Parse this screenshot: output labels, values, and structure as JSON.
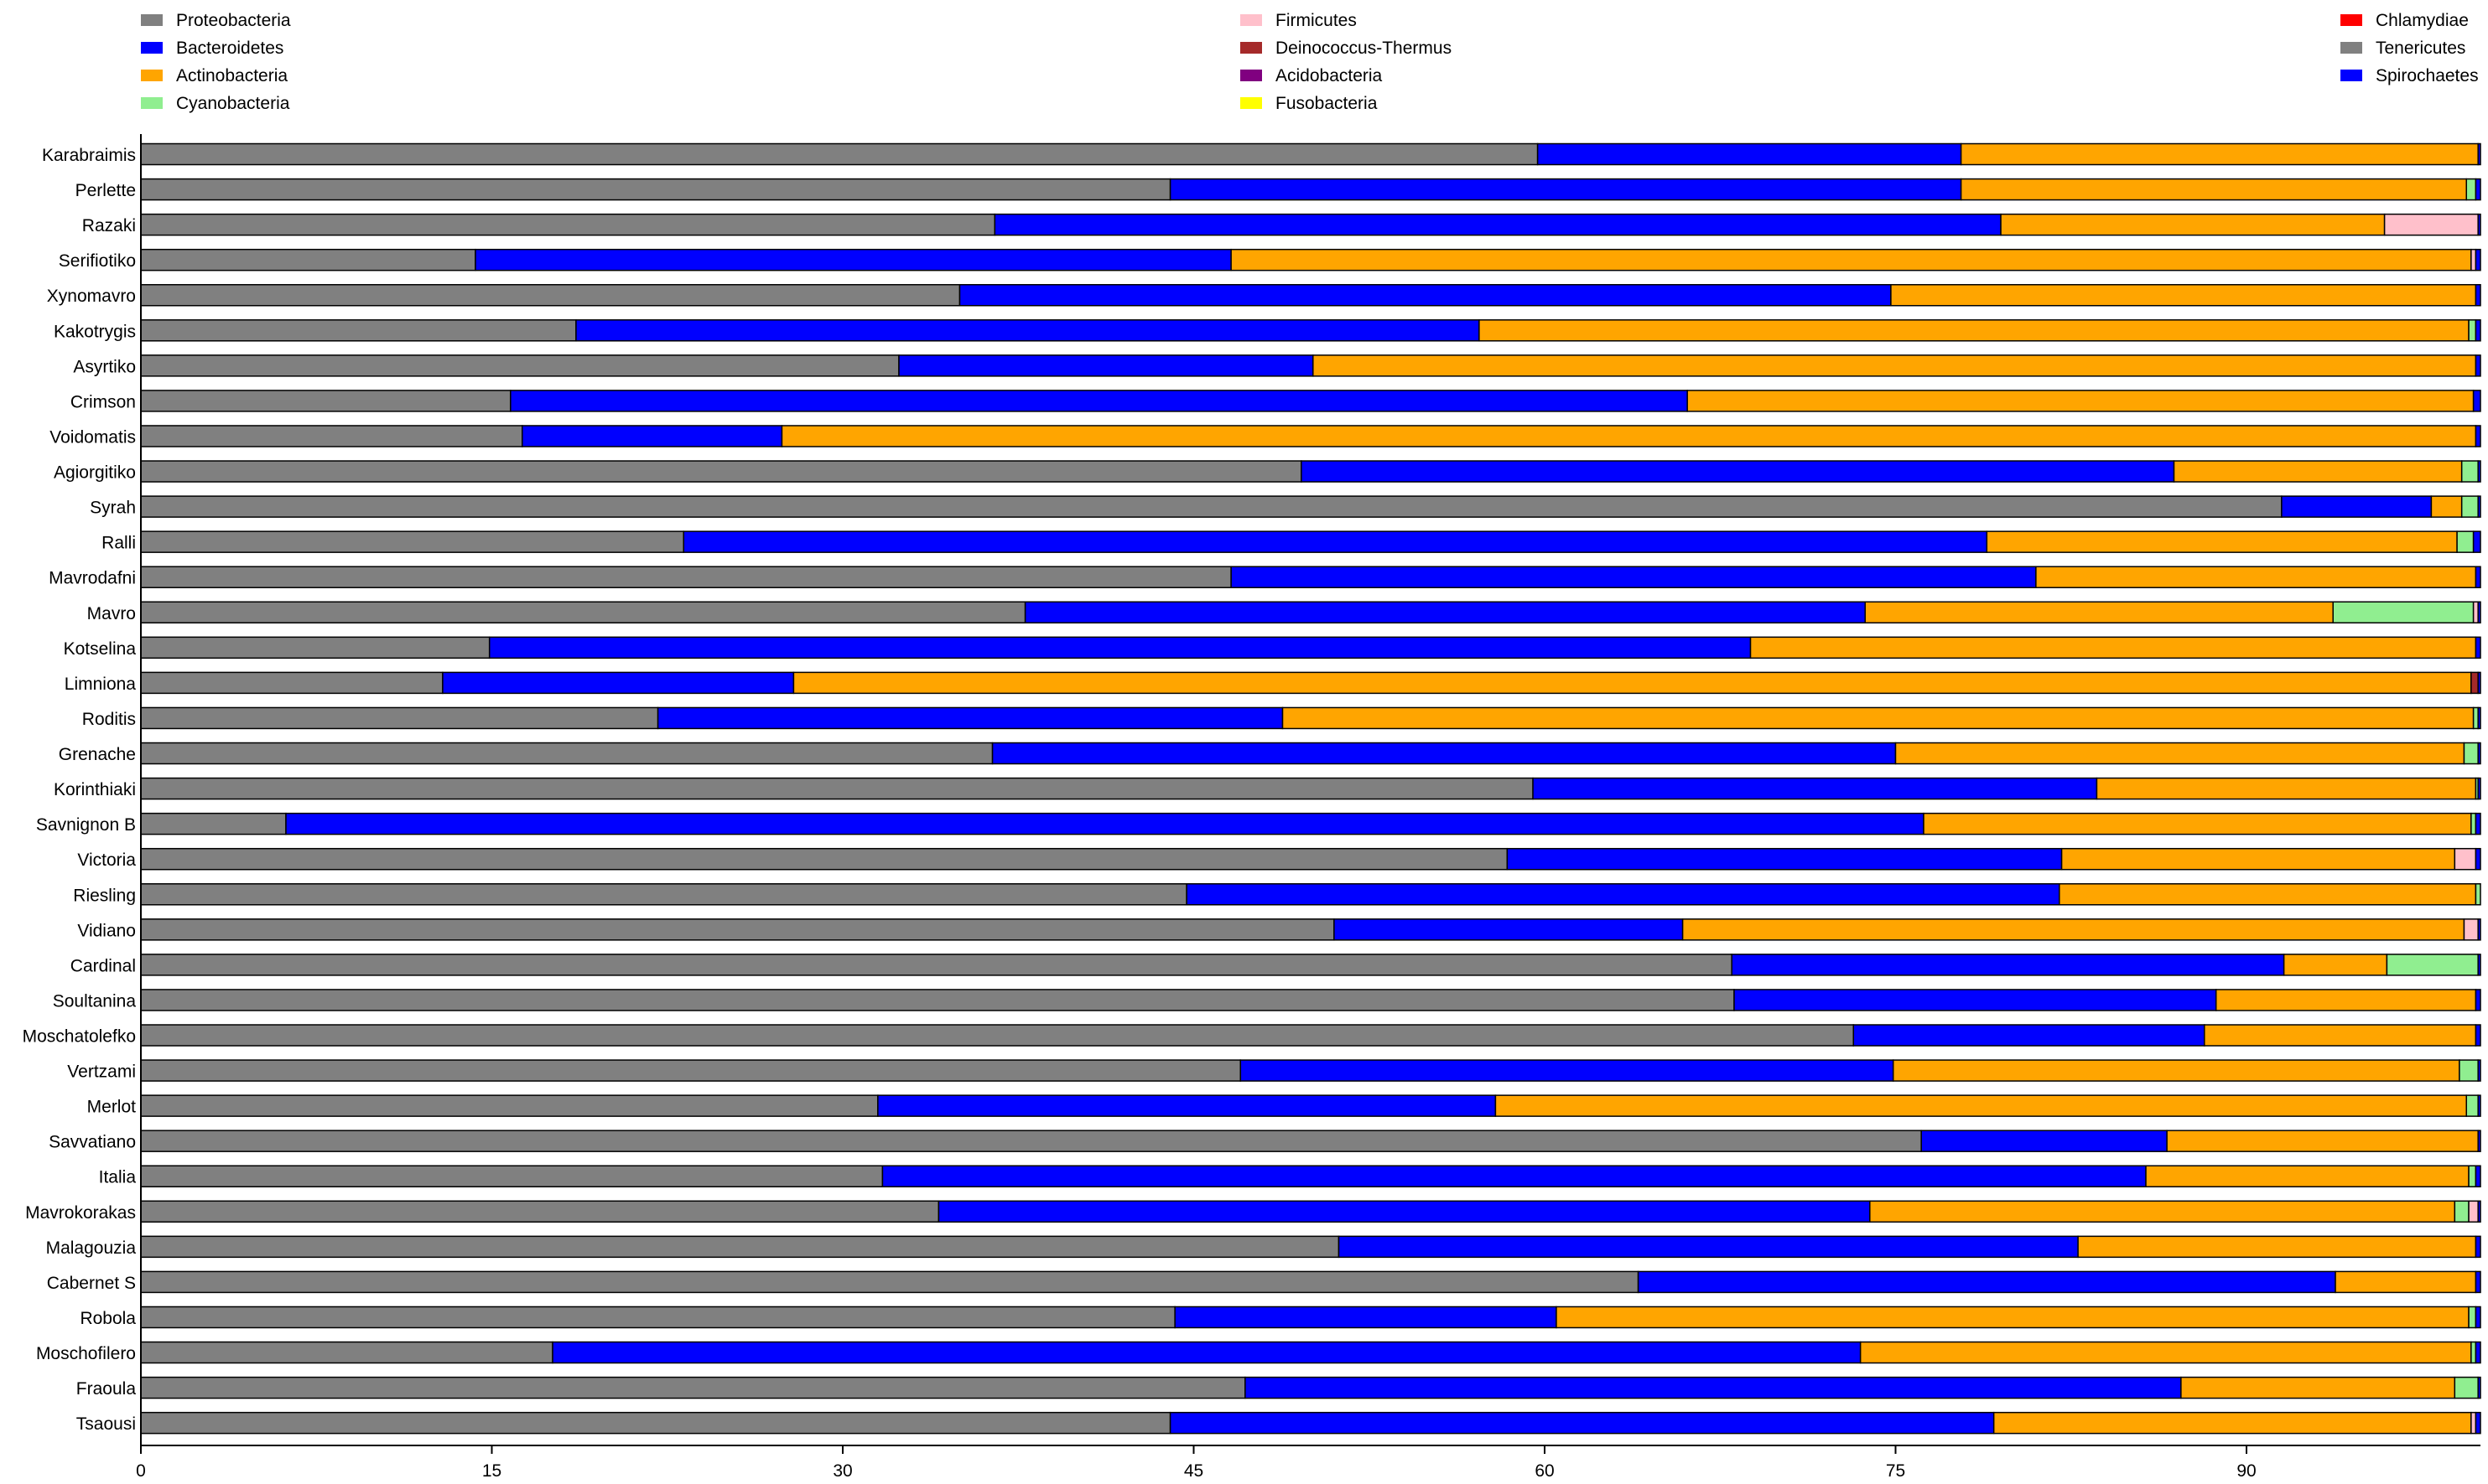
{
  "chart_data": {
    "type": "bar",
    "orientation": "horizontal",
    "stacked": true,
    "title": "",
    "xlabel": "",
    "ylabel": "",
    "xlim": [
      0,
      100
    ],
    "x_ticks": [
      0,
      15,
      30,
      45,
      60,
      75,
      90
    ],
    "legend": {
      "columns": [
        [
          "Proteobacteria",
          "Bacteroidetes",
          "Actinobacteria",
          "Cyanobacteria"
        ],
        [
          "Firmicutes",
          "Deinococcus-Thermus",
          "Acidobacteria",
          "Fusobacteria"
        ],
        [
          "Chlamydiae",
          "Tenericutes",
          "Spirochaetes"
        ]
      ],
      "placement": "top"
    },
    "series_colors": {
      "Proteobacteria": "#808080",
      "Bacteroidetes": "#0000ff",
      "Actinobacteria": "#ffa500",
      "Cyanobacteria": "#90ee90",
      "Firmicutes": "#ffc0cb",
      "Deinococcus-Thermus": "#a52a2a",
      "Acidobacteria": "#800080",
      "Fusobacteria": "#ffff00",
      "Chlamydiae": "#ff0000",
      "Tenericutes": "#808080",
      "Spirochaetes": "#0000ff"
    },
    "series_order": [
      "Proteobacteria",
      "Bacteroidetes",
      "Actinobacteria",
      "Cyanobacteria",
      "Firmicutes",
      "Deinococcus-Thermus",
      "Acidobacteria",
      "Fusobacteria",
      "Chlamydiae",
      "Tenericutes",
      "Spirochaetes"
    ],
    "categories": [
      "Karabraimis",
      "Perlette",
      "Razaki",
      "Serifiotiko",
      "Xynomavro",
      "Kakotrygis",
      "Asyrtiko",
      "Crimson",
      "Voidomatis",
      "Agiorgitiko",
      "Syrah",
      "Ralli",
      "Mavrodafni",
      "Mavro",
      "Kotselina",
      "Limniona",
      "Roditis",
      "Grenache",
      "Korinthiaki",
      "Savnignon B",
      "Victoria",
      "Riesling",
      "Vidiano",
      "Cardinal",
      "Soultanina",
      "Moschatolefko",
      "Vertzami",
      "Merlot",
      "Savvatiano",
      "Italia",
      "Mavrokorakas",
      "Malagouzia",
      "Cabernet S",
      "Robola",
      "Moschofilero",
      "Fraoula",
      "Tsaousi"
    ],
    "values": [
      [
        59.7,
        18.1,
        22.1,
        0,
        0,
        0,
        0,
        0,
        0,
        0,
        0.1
      ],
      [
        44.0,
        33.8,
        21.6,
        0.4,
        0,
        0,
        0,
        0,
        0,
        0,
        0.2
      ],
      [
        36.5,
        43.0,
        16.4,
        0,
        4.0,
        0,
        0,
        0,
        0,
        0,
        0.1
      ],
      [
        14.3,
        32.3,
        53.0,
        0,
        0.2,
        0,
        0,
        0,
        0,
        0,
        0.2
      ],
      [
        35.0,
        39.8,
        25.0,
        0,
        0,
        0,
        0,
        0,
        0,
        0,
        0.2
      ],
      [
        18.6,
        38.6,
        42.3,
        0.3,
        0,
        0,
        0,
        0,
        0,
        0,
        0.2
      ],
      [
        32.4,
        17.7,
        49.7,
        0,
        0,
        0,
        0,
        0,
        0,
        0,
        0.2
      ],
      [
        15.8,
        50.3,
        33.6,
        0,
        0,
        0,
        0,
        0,
        0,
        0,
        0.3
      ],
      [
        16.3,
        11.1,
        72.4,
        0,
        0,
        0,
        0,
        0,
        0,
        0,
        0.2
      ],
      [
        49.6,
        37.3,
        12.3,
        0.7,
        0,
        0,
        0,
        0,
        0,
        0,
        0.1
      ],
      [
        91.5,
        6.4,
        1.3,
        0.7,
        0,
        0,
        0,
        0,
        0,
        0,
        0.1
      ],
      [
        23.2,
        55.7,
        20.1,
        0.7,
        0,
        0,
        0,
        0,
        0,
        0,
        0.3
      ],
      [
        46.6,
        34.4,
        18.8,
        0,
        0,
        0,
        0,
        0,
        0,
        0,
        0.2
      ],
      [
        37.8,
        35.9,
        20.0,
        6.0,
        0.2,
        0,
        0,
        0,
        0,
        0,
        0.1
      ],
      [
        14.9,
        53.9,
        31.0,
        0,
        0,
        0,
        0,
        0,
        0,
        0,
        0.2
      ],
      [
        12.9,
        15.0,
        71.7,
        0,
        0,
        0.3,
        0,
        0,
        0,
        0,
        0.1
      ],
      [
        22.1,
        26.7,
        50.9,
        0.2,
        0,
        0,
        0,
        0,
        0,
        0,
        0.1
      ],
      [
        36.4,
        38.6,
        24.3,
        0.6,
        0,
        0,
        0,
        0,
        0,
        0,
        0.1
      ],
      [
        59.5,
        24.1,
        16.2,
        0.1,
        0,
        0,
        0,
        0,
        0,
        0,
        0.1
      ],
      [
        6.2,
        70.0,
        23.4,
        0.2,
        0,
        0,
        0,
        0,
        0,
        0,
        0.2
      ],
      [
        58.4,
        23.7,
        16.8,
        0,
        0.9,
        0,
        0,
        0,
        0,
        0,
        0.2
      ],
      [
        44.7,
        37.3,
        17.8,
        0.2,
        0,
        0,
        0,
        0,
        0,
        0,
        0
      ],
      [
        51.0,
        14.9,
        33.4,
        0,
        0.6,
        0,
        0,
        0,
        0,
        0,
        0.1
      ],
      [
        68.0,
        23.6,
        4.4,
        3.9,
        0,
        0,
        0,
        0,
        0,
        0,
        0.1
      ],
      [
        68.1,
        20.6,
        11.1,
        0,
        0,
        0,
        0,
        0,
        0,
        0,
        0.2
      ],
      [
        73.2,
        15.0,
        11.6,
        0,
        0,
        0,
        0,
        0,
        0,
        0,
        0.2
      ],
      [
        47.0,
        27.9,
        24.2,
        0.8,
        0,
        0,
        0,
        0,
        0,
        0,
        0.1
      ],
      [
        31.5,
        26.4,
        41.5,
        0.5,
        0,
        0,
        0,
        0,
        0,
        0,
        0.1
      ],
      [
        76.1,
        10.5,
        13.3,
        0,
        0,
        0,
        0,
        0,
        0,
        0,
        0.1
      ],
      [
        31.7,
        54.0,
        13.8,
        0.3,
        0,
        0,
        0,
        0,
        0,
        0,
        0.2
      ],
      [
        34.1,
        39.8,
        25.0,
        0.6,
        0.4,
        0,
        0,
        0,
        0,
        0,
        0.1
      ],
      [
        51.2,
        31.6,
        17.0,
        0,
        0,
        0,
        0,
        0,
        0,
        0,
        0.2
      ],
      [
        64.0,
        29.8,
        6.0,
        0,
        0,
        0,
        0,
        0,
        0,
        0,
        0.2
      ],
      [
        44.2,
        16.3,
        39.0,
        0.3,
        0,
        0,
        0,
        0,
        0,
        0,
        0.2
      ],
      [
        17.6,
        55.9,
        26.1,
        0.2,
        0,
        0,
        0,
        0,
        0,
        0,
        0.2
      ],
      [
        47.2,
        40.0,
        11.7,
        1.0,
        0,
        0,
        0,
        0,
        0,
        0,
        0.1
      ],
      [
        44.0,
        35.2,
        20.4,
        0,
        0.2,
        0,
        0,
        0,
        0,
        0,
        0.2
      ]
    ]
  }
}
